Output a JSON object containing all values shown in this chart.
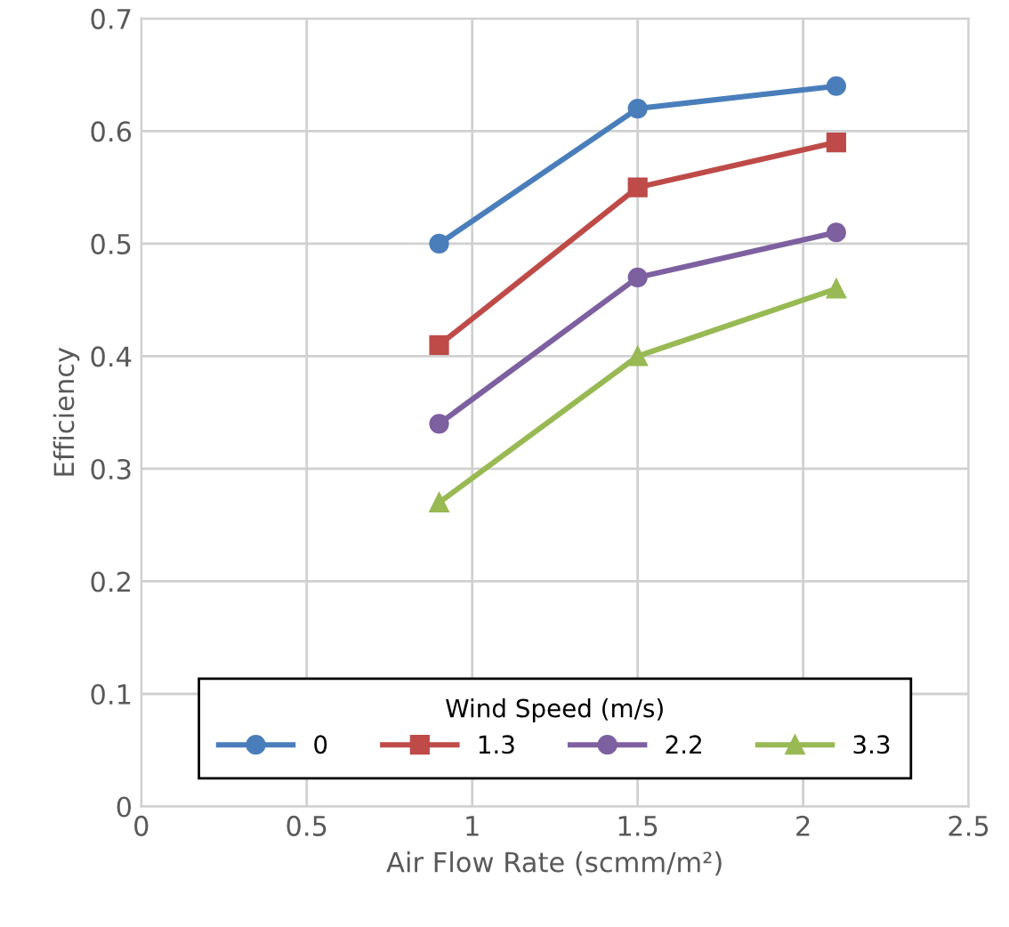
{
  "chart_data": {
    "type": "line",
    "xlabel": "Air Flow Rate (scmm/m²)",
    "ylabel": "Efficiency",
    "legend_title": "Wind Speed (m/s)",
    "x": [
      0.9,
      1.5,
      2.1
    ],
    "series": [
      {
        "name": "0",
        "color": "#4a7ebb",
        "marker": "circle",
        "values": [
          0.5,
          0.62,
          0.64
        ]
      },
      {
        "name": "1.3",
        "color": "#be4b48",
        "marker": "square",
        "values": [
          0.41,
          0.55,
          0.59
        ]
      },
      {
        "name": "2.2",
        "color": "#7d60a0",
        "marker": "circle",
        "values": [
          0.34,
          0.47,
          0.51
        ]
      },
      {
        "name": "3.3",
        "color": "#98b954",
        "marker": "triangle",
        "values": [
          0.27,
          0.4,
          0.46
        ]
      }
    ],
    "xlim": [
      0,
      2.5
    ],
    "xticks": [
      0,
      0.5,
      1,
      1.5,
      2,
      2.5
    ],
    "ylim": [
      0,
      0.7
    ],
    "yticks": [
      0,
      0.1,
      0.2,
      0.3,
      0.4,
      0.5,
      0.6,
      0.7
    ],
    "grid": true,
    "legend": "bottom",
    "line_style": "solid"
  }
}
